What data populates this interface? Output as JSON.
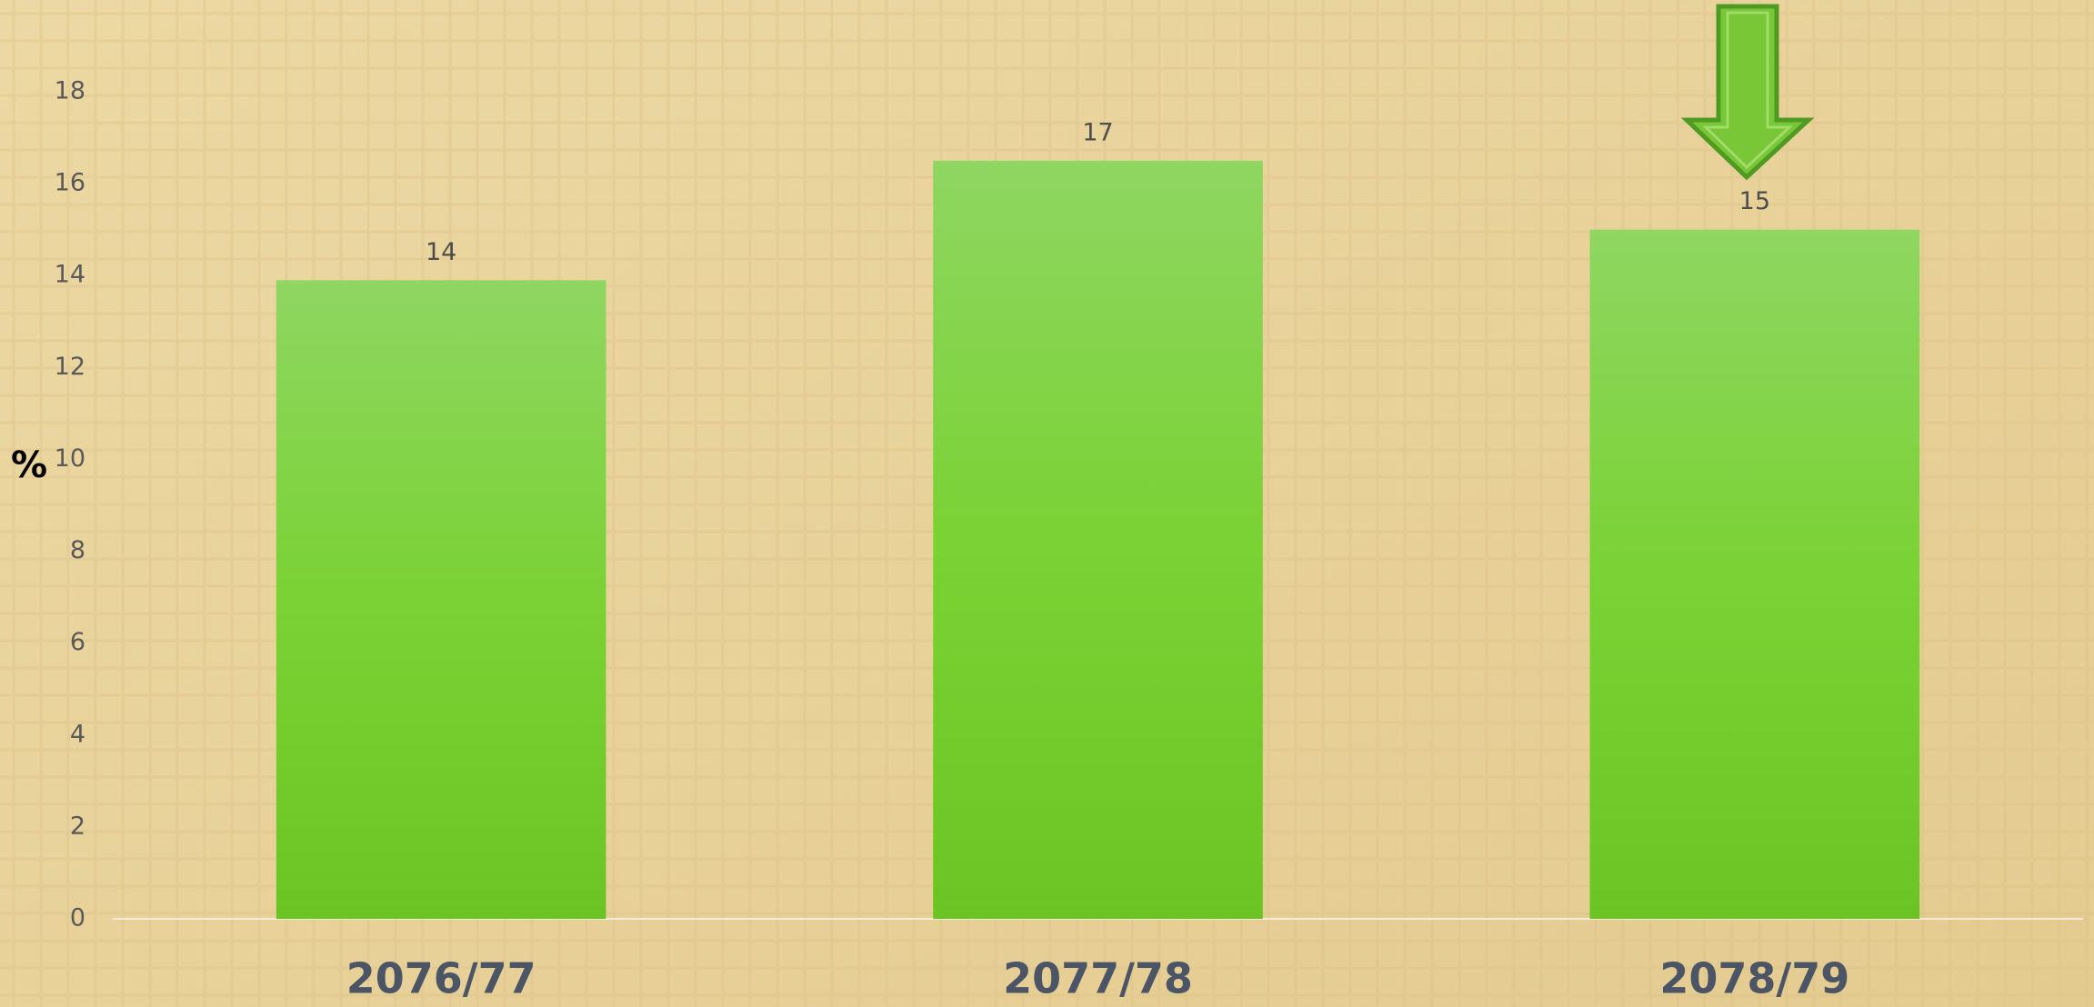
{
  "chart_data": {
    "type": "bar",
    "ylabel": "%",
    "categories": [
      "2076/77",
      "2077/78",
      "2078/79"
    ],
    "values": [
      13.9,
      16.5,
      15.0
    ],
    "value_labels": [
      "14",
      "17",
      "15"
    ],
    "color": "#79d030",
    "ylim": [
      0,
      18
    ],
    "yticks": [
      0,
      2,
      4,
      6,
      8,
      10,
      12,
      14,
      16,
      18
    ],
    "grid": false
  }
}
